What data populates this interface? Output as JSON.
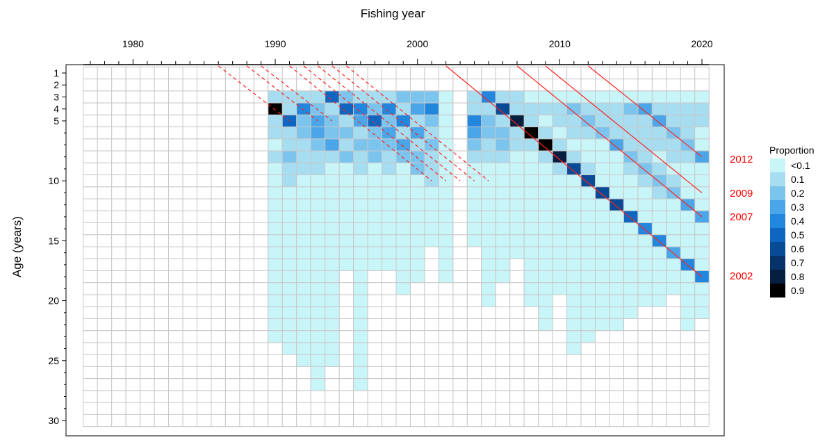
{
  "chart_data": {
    "type": "heatmap",
    "title": "",
    "xlabel": "Fishing year",
    "ylabel": "Age (years)",
    "x_ticks": [
      1980,
      1990,
      2000,
      2010,
      2020
    ],
    "y_ticks": [
      1,
      2,
      3,
      4,
      5,
      10,
      15,
      20,
      25,
      30
    ],
    "xlim": [
      1977,
      2020
    ],
    "ylim": [
      1,
      30
    ],
    "grid": true,
    "colors": {
      "axis": "#000000",
      "grid": "#c8c8c8",
      "cohort_line": "#ff2020",
      "cohort_label": "#ff0000"
    },
    "legend": {
      "title": "Proportion",
      "placement": "right",
      "labels": [
        "<0.1",
        "0.1",
        "0.2",
        "0.3",
        "0.4",
        "0.5",
        "0.6",
        "0.7",
        "0.8",
        "0.9"
      ],
      "colors": [
        "#c8f5f8",
        "#a6ddf0",
        "#7bc4ed",
        "#4aa6e8",
        "#2186dd",
        "#0e66c0",
        "#074a96",
        "#07326a",
        "#061e40",
        "#000000"
      ]
    },
    "cohort_labels": [
      "2012",
      "2009",
      "2007",
      "2002"
    ],
    "cohorts": [
      {
        "year": 1986,
        "style": "dashed",
        "from_age": 1,
        "to_age": 5
      },
      {
        "year": 1988,
        "style": "dashed",
        "from_age": 1,
        "to_age": 5
      },
      {
        "year": 1989,
        "style": "dashed",
        "from_age": 1,
        "to_age": 5
      },
      {
        "year": 1991,
        "style": "dashed",
        "from_age": 1,
        "to_age": 10
      },
      {
        "year": 1992,
        "style": "dashed",
        "from_age": 1,
        "to_age": 10
      },
      {
        "year": 1993,
        "style": "dashed",
        "from_age": 1,
        "to_age": 10
      },
      {
        "year": 1994,
        "style": "dashed",
        "from_age": 1,
        "to_age": 10
      },
      {
        "year": 1995,
        "style": "dashed",
        "from_age": 1,
        "to_age": 10
      },
      {
        "year": 2002,
        "style": "solid",
        "from_age": 1,
        "to_age": 18
      },
      {
        "year": 2007,
        "style": "solid",
        "from_age": 1,
        "to_age": 13
      },
      {
        "year": 2009,
        "style": "solid",
        "from_age": 1,
        "to_age": 11
      },
      {
        "year": 2012,
        "style": "solid",
        "from_age": 1,
        "to_age": 8
      }
    ],
    "sampled_years": [
      {
        "year": 1990,
        "max_age": 23
      },
      {
        "year": 1991,
        "max_age": 24
      },
      {
        "year": 1992,
        "max_age": 25
      },
      {
        "year": 1993,
        "max_age": 27
      },
      {
        "year": 1994,
        "max_age": 25
      },
      {
        "year": 1995,
        "max_age": 17
      },
      {
        "year": 1996,
        "max_age": 27
      },
      {
        "year": 1997,
        "max_age": 17
      },
      {
        "year": 1998,
        "max_age": 17
      },
      {
        "year": 1999,
        "max_age": 19
      },
      {
        "year": 2000,
        "max_age": 18
      },
      {
        "year": 2001,
        "max_age": 15
      },
      {
        "year": 2002,
        "max_age": 18
      },
      {
        "year": 2004,
        "max_age": 15
      },
      {
        "year": 2005,
        "max_age": 20
      },
      {
        "year": 2006,
        "max_age": 18
      },
      {
        "year": 2007,
        "max_age": 16
      },
      {
        "year": 2008,
        "max_age": 20
      },
      {
        "year": 2009,
        "max_age": 22
      },
      {
        "year": 2010,
        "max_age": 19
      },
      {
        "year": 2011,
        "max_age": 24
      },
      {
        "year": 2012,
        "max_age": 23
      },
      {
        "year": 2013,
        "max_age": 22
      },
      {
        "year": 2014,
        "max_age": 22
      },
      {
        "year": 2015,
        "max_age": 21
      },
      {
        "year": 2016,
        "max_age": 20
      },
      {
        "year": 2017,
        "max_age": 20
      },
      {
        "year": 2018,
        "max_age": 19
      },
      {
        "year": 2019,
        "max_age": 22
      },
      {
        "year": 2020,
        "max_age": 21
      }
    ],
    "ages_start": 3,
    "proportions_note_values": "proportion at age by fishing year; unlisted sampled cells < 0.1",
    "cells": [
      [
        1990,
        3,
        0.1
      ],
      [
        1990,
        4,
        0.9
      ],
      [
        1990,
        5,
        0.1
      ],
      [
        1990,
        6,
        0.1
      ],
      [
        1990,
        8,
        0.1
      ],
      [
        1991,
        3,
        0.1
      ],
      [
        1991,
        4,
        0.1
      ],
      [
        1991,
        5,
        0.5
      ],
      [
        1991,
        6,
        0.1
      ],
      [
        1991,
        7,
        0.1
      ],
      [
        1991,
        8,
        0.2
      ],
      [
        1991,
        9,
        0.1
      ],
      [
        1991,
        10,
        0.1
      ],
      [
        1992,
        3,
        0.1
      ],
      [
        1992,
        4,
        0.4
      ],
      [
        1992,
        5,
        0.2
      ],
      [
        1992,
        6,
        0.2
      ],
      [
        1992,
        7,
        0.1
      ],
      [
        1992,
        8,
        0.1
      ],
      [
        1992,
        9,
        0.1
      ],
      [
        1993,
        3,
        0.1
      ],
      [
        1993,
        4,
        0.2
      ],
      [
        1993,
        5,
        0.3
      ],
      [
        1993,
        6,
        0.3
      ],
      [
        1993,
        7,
        0.2
      ],
      [
        1993,
        8,
        0.1
      ],
      [
        1993,
        9,
        0.1
      ],
      [
        1994,
        3,
        0.5
      ],
      [
        1994,
        4,
        0.1
      ],
      [
        1994,
        5,
        0.2
      ],
      [
        1994,
        6,
        0.2
      ],
      [
        1994,
        7,
        0.3
      ],
      [
        1994,
        8,
        0.1
      ],
      [
        1995,
        3,
        0.2
      ],
      [
        1995,
        4,
        0.5
      ],
      [
        1995,
        5,
        0.1
      ],
      [
        1995,
        6,
        0.2
      ],
      [
        1995,
        7,
        0.1
      ],
      [
        1995,
        8,
        0.2
      ],
      [
        1996,
        3,
        0.1
      ],
      [
        1996,
        4,
        0.4
      ],
      [
        1996,
        5,
        0.3
      ],
      [
        1996,
        6,
        0.1
      ],
      [
        1996,
        7,
        0.2
      ],
      [
        1996,
        8,
        0.1
      ],
      [
        1996,
        9,
        0.1
      ],
      [
        1997,
        3,
        0.1
      ],
      [
        1997,
        4,
        0.2
      ],
      [
        1997,
        5,
        0.5
      ],
      [
        1997,
        6,
        0.2
      ],
      [
        1997,
        7,
        0.2
      ],
      [
        1997,
        8,
        0.2
      ],
      [
        1998,
        3,
        0.1
      ],
      [
        1998,
        4,
        0.4
      ],
      [
        1998,
        5,
        0.2
      ],
      [
        1998,
        6,
        0.3
      ],
      [
        1998,
        7,
        0.2
      ],
      [
        1998,
        8,
        0.1
      ],
      [
        1998,
        9,
        0.1
      ],
      [
        1999,
        3,
        0.2
      ],
      [
        1999,
        4,
        0.1
      ],
      [
        1999,
        5,
        0.4
      ],
      [
        1999,
        6,
        0.1
      ],
      [
        1999,
        7,
        0.3
      ],
      [
        1999,
        8,
        0.2
      ],
      [
        2000,
        3,
        0.2
      ],
      [
        2000,
        4,
        0.3
      ],
      [
        2000,
        5,
        0.1
      ],
      [
        2000,
        6,
        0.3
      ],
      [
        2000,
        7,
        0.1
      ],
      [
        2000,
        8,
        0.2
      ],
      [
        2000,
        9,
        0.2
      ],
      [
        2001,
        3,
        0.2
      ],
      [
        2001,
        4,
        0.4
      ],
      [
        2001,
        5,
        0.2
      ],
      [
        2001,
        6,
        0.1
      ],
      [
        2001,
        7,
        0.2
      ],
      [
        2001,
        8,
        0.1
      ],
      [
        2001,
        9,
        0.1
      ],
      [
        2001,
        10,
        0.1
      ],
      [
        2004,
        3,
        0.1
      ],
      [
        2004,
        4,
        0.1
      ],
      [
        2004,
        5,
        0.4
      ],
      [
        2004,
        6,
        0.3
      ],
      [
        2004,
        7,
        0.2
      ],
      [
        2004,
        8,
        0.1
      ],
      [
        2005,
        3,
        0.4
      ],
      [
        2005,
        4,
        0.1
      ],
      [
        2005,
        5,
        0.2
      ],
      [
        2005,
        6,
        0.2
      ],
      [
        2005,
        7,
        0.1
      ],
      [
        2005,
        8,
        0.1
      ],
      [
        2006,
        3,
        0.1
      ],
      [
        2006,
        4,
        0.6
      ],
      [
        2006,
        5,
        0.1
      ],
      [
        2006,
        6,
        0.2
      ],
      [
        2006,
        7,
        0.2
      ],
      [
        2006,
        8,
        0.1
      ],
      [
        2007,
        3,
        0.1
      ],
      [
        2007,
        4,
        0.1
      ],
      [
        2007,
        5,
        0.8
      ],
      [
        2007,
        6,
        0.1
      ],
      [
        2007,
        7,
        0.1
      ],
      [
        2008,
        4,
        0.1
      ],
      [
        2008,
        5,
        0.1
      ],
      [
        2008,
        6,
        0.9
      ],
      [
        2008,
        7,
        0.1
      ],
      [
        2009,
        4,
        0.1
      ],
      [
        2009,
        6,
        0.1
      ],
      [
        2009,
        7,
        0.9
      ],
      [
        2009,
        8,
        0.1
      ],
      [
        2010,
        4,
        0.1
      ],
      [
        2010,
        5,
        0.1
      ],
      [
        2010,
        7,
        0.1
      ],
      [
        2010,
        8,
        0.8
      ],
      [
        2010,
        9,
        0.1
      ],
      [
        2011,
        4,
        0.2
      ],
      [
        2011,
        5,
        0.1
      ],
      [
        2011,
        6,
        0.1
      ],
      [
        2011,
        8,
        0.1
      ],
      [
        2011,
        9,
        0.6
      ],
      [
        2012,
        4,
        0.1
      ],
      [
        2012,
        5,
        0.2
      ],
      [
        2012,
        6,
        0.1
      ],
      [
        2012,
        9,
        0.1
      ],
      [
        2012,
        10,
        0.6
      ],
      [
        2013,
        4,
        0.1
      ],
      [
        2013,
        5,
        0.1
      ],
      [
        2013,
        6,
        0.2
      ],
      [
        2013,
        11,
        0.6
      ],
      [
        2014,
        4,
        0.1
      ],
      [
        2014,
        5,
        0.1
      ],
      [
        2014,
        6,
        0.1
      ],
      [
        2014,
        7,
        0.3
      ],
      [
        2014,
        12,
        0.6
      ],
      [
        2015,
        4,
        0.2
      ],
      [
        2015,
        5,
        0.1
      ],
      [
        2015,
        6,
        0.1
      ],
      [
        2015,
        7,
        0.1
      ],
      [
        2015,
        8,
        0.2
      ],
      [
        2015,
        9,
        0.1
      ],
      [
        2015,
        13,
        0.5
      ],
      [
        2016,
        4,
        0.3
      ],
      [
        2016,
        5,
        0.1
      ],
      [
        2016,
        6,
        0.1
      ],
      [
        2016,
        7,
        0.1
      ],
      [
        2016,
        8,
        0.1
      ],
      [
        2016,
        9,
        0.2
      ],
      [
        2016,
        10,
        0.1
      ],
      [
        2016,
        14,
        0.4
      ],
      [
        2017,
        4,
        0.1
      ],
      [
        2017,
        5,
        0.3
      ],
      [
        2017,
        6,
        0.1
      ],
      [
        2017,
        7,
        0.1
      ],
      [
        2017,
        9,
        0.1
      ],
      [
        2017,
        10,
        0.2
      ],
      [
        2017,
        11,
        0.1
      ],
      [
        2017,
        15,
        0.4
      ],
      [
        2018,
        4,
        0.1
      ],
      [
        2018,
        5,
        0.1
      ],
      [
        2018,
        6,
        0.2
      ],
      [
        2018,
        7,
        0.1
      ],
      [
        2018,
        8,
        0.1
      ],
      [
        2018,
        10,
        0.1
      ],
      [
        2018,
        11,
        0.2
      ],
      [
        2018,
        16,
        0.3
      ],
      [
        2019,
        4,
        0.1
      ],
      [
        2019,
        5,
        0.1
      ],
      [
        2019,
        6,
        0.1
      ],
      [
        2019,
        7,
        0.2
      ],
      [
        2019,
        8,
        0.1
      ],
      [
        2019,
        12,
        0.3
      ],
      [
        2019,
        17,
        0.4
      ],
      [
        2020,
        4,
        0.1
      ],
      [
        2020,
        5,
        0.1
      ],
      [
        2020,
        8,
        0.3
      ],
      [
        2020,
        13,
        0.3
      ],
      [
        2020,
        18,
        0.4
      ]
    ]
  }
}
